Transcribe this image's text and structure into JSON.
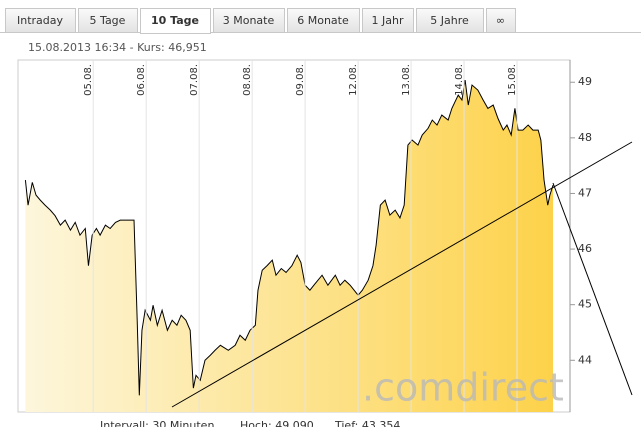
{
  "tabs": [
    "Intraday",
    "5 Tage",
    "10 Tage",
    "3 Monate",
    "6 Monate",
    "1 Jahr",
    "5 Jahre",
    "∞"
  ],
  "chart_data": {
    "type": "area",
    "title": "15.08.2013 16:34  -  Kurs: 46,951",
    "x": [
      -0.28,
      -0.23,
      -0.15,
      -0.08,
      0,
      0.09,
      0.19,
      0.28,
      0.38,
      0.47,
      0.57,
      0.66,
      0.75,
      0.85,
      0.91,
      0.98,
      1.06,
      1.13,
      1.23,
      1.32,
      1.42,
      1.51,
      1.6,
      1.77,
      1.83,
      1.87,
      1.92,
      1.98,
      2.08,
      2.13,
      2.21,
      2.3,
      2.4,
      2.49,
      2.58,
      2.66,
      2.75,
      2.83,
      2.89,
      2.94,
      3.02,
      3.11,
      3.21,
      3.3,
      3.4,
      3.55,
      3.68,
      3.77,
      3.87,
      3.96,
      4.06,
      4.11,
      4.19,
      4.28,
      4.38,
      4.45,
      4.55,
      4.64,
      4.75,
      4.85,
      4.92,
      5.0,
      5.09,
      5.19,
      5.32,
      5.43,
      5.57,
      5.66,
      5.75,
      5.85,
      6.0,
      6.08,
      6.19,
      6.28,
      6.34,
      6.42,
      6.51,
      6.6,
      6.7,
      6.79,
      6.87,
      6.94,
      7.02,
      7.13,
      7.21,
      7.32,
      7.4,
      7.49,
      7.58,
      7.7,
      7.77,
      7.89,
      7.96,
      8.02,
      8.08,
      8.15,
      8.26,
      8.36,
      8.45,
      8.55,
      8.64,
      8.74,
      8.81,
      8.89,
      8.96,
      9.02,
      9.11,
      9.21,
      9.3,
      9.4,
      9.45,
      9.51,
      9.58,
      9.62,
      9.68
    ],
    "values": [
      47.24,
      46.79,
      47.2,
      46.97,
      46.88,
      46.79,
      46.7,
      46.6,
      46.43,
      46.52,
      46.34,
      46.48,
      46.25,
      46.37,
      45.7,
      46.25,
      46.37,
      46.25,
      46.43,
      46.37,
      46.48,
      46.52,
      46.52,
      46.52,
      44.72,
      43.37,
      44.54,
      44.9,
      44.72,
      44.99,
      44.63,
      44.9,
      44.54,
      44.72,
      44.63,
      44.81,
      44.72,
      44.54,
      43.5,
      43.73,
      43.64,
      44.0,
      44.09,
      44.18,
      44.27,
      44.18,
      44.27,
      44.45,
      44.36,
      44.54,
      44.63,
      45.26,
      45.62,
      45.7,
      45.8,
      45.53,
      45.65,
      45.58,
      45.7,
      45.89,
      45.76,
      45.35,
      45.26,
      45.38,
      45.53,
      45.35,
      45.53,
      45.35,
      45.44,
      45.35,
      45.17,
      45.26,
      45.44,
      45.7,
      46.07,
      46.79,
      46.88,
      46.61,
      46.7,
      46.56,
      46.79,
      47.87,
      47.96,
      47.87,
      48.05,
      48.17,
      48.32,
      48.23,
      48.41,
      48.32,
      48.53,
      48.77,
      48.68,
      49.04,
      48.59,
      48.95,
      48.86,
      48.68,
      48.53,
      48.59,
      48.35,
      48.14,
      48.23,
      48.05,
      48.53,
      48.14,
      48.14,
      48.23,
      48.14,
      48.14,
      47.96,
      47.24,
      46.79,
      46.97,
      47.15
    ],
    "xlim": [
      -0.42,
      10.0
    ],
    "xticks": [
      {
        "value": 1,
        "label": "05.08."
      },
      {
        "value": 2,
        "label": "06.08."
      },
      {
        "value": 3,
        "label": "07.08."
      },
      {
        "value": 4,
        "label": "08.08."
      },
      {
        "value": 5,
        "label": "09.08."
      },
      {
        "value": 6,
        "label": "12.08."
      },
      {
        "value": 7,
        "label": "13.08."
      },
      {
        "value": 8,
        "label": "14.08."
      },
      {
        "value": 9,
        "label": "15.08."
      }
    ],
    "ylim": [
      43.07,
      49.4
    ],
    "yticks": [
      44,
      45,
      46,
      47,
      48,
      49
    ],
    "color": "#fdd24a",
    "watermark": ".comdirect",
    "footer": [
      "Intervall: 30 Minuten",
      "Hoch: 49,090",
      "Tief: 43,354"
    ]
  }
}
